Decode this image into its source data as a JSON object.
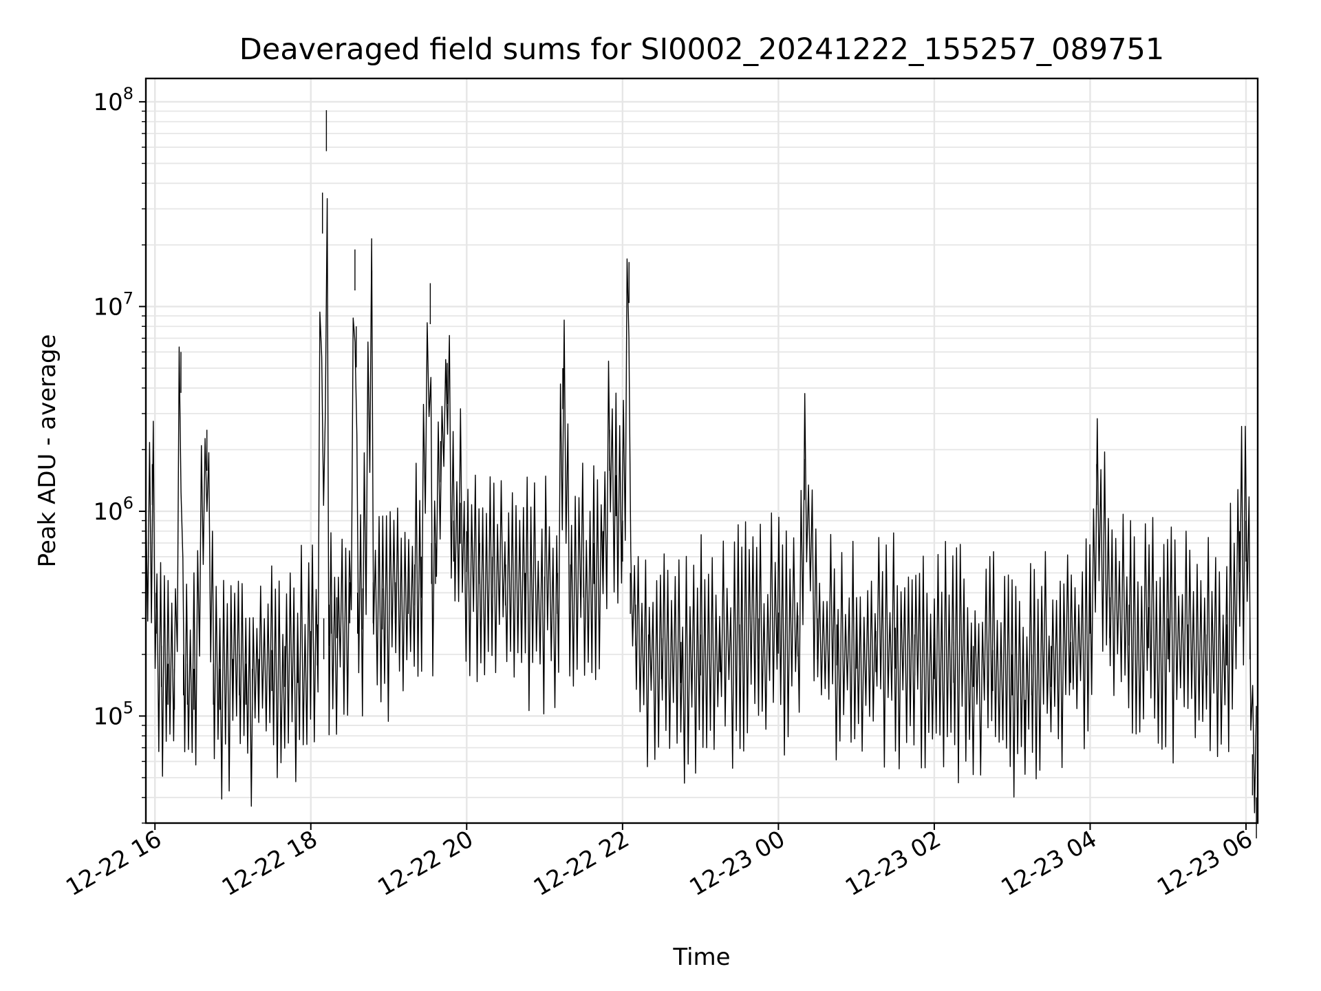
{
  "chart_data": {
    "type": "line",
    "title": "Deaveraged field sums for SI0002_20241222_155257_089751",
    "xlabel": "Time",
    "ylabel": "Peak ADU - average",
    "yscale": "log",
    "xlim": [
      "2024-12-22 15:53",
      "2024-12-23 06:09"
    ],
    "ylim": [
      30000,
      130000000
    ],
    "grid": true,
    "line_color": "#000000",
    "x_ticks": [
      {
        "label": "12-22 16",
        "value": "2024-12-22 16:00"
      },
      {
        "label": "12-22 18",
        "value": "2024-12-22 18:00"
      },
      {
        "label": "12-22 20",
        "value": "2024-12-22 20:00"
      },
      {
        "label": "12-22 22",
        "value": "2024-12-22 22:00"
      },
      {
        "label": "12-23 00",
        "value": "2024-12-23 00:00"
      },
      {
        "label": "12-23 02",
        "value": "2024-12-23 02:00"
      },
      {
        "label": "12-23 04",
        "value": "2024-12-23 04:00"
      },
      {
        "label": "12-23 06",
        "value": "2024-12-23 06:00"
      }
    ],
    "y_ticks": [
      {
        "base": "10",
        "exp": "5",
        "value": 100000
      },
      {
        "base": "10",
        "exp": "6",
        "value": 1000000
      },
      {
        "base": "10",
        "exp": "7",
        "value": 10000000
      },
      {
        "base": "10",
        "exp": "8",
        "value": 100000000
      }
    ],
    "series": [
      {
        "x": [
          "2024-12-22 15:53",
          "2024-12-22 15:58",
          "2024-12-22 16:01",
          "2024-12-22 16:05",
          "2024-12-22 16:10",
          "2024-12-22 16:15",
          "2024-12-22 16:20",
          "2024-12-22 16:22",
          "2024-12-22 16:25",
          "2024-12-22 16:30",
          "2024-12-22 16:40",
          "2024-12-22 16:45",
          "2024-12-22 16:50",
          "2024-12-22 17:00",
          "2024-12-22 17:05",
          "2024-12-22 17:10",
          "2024-12-22 17:15",
          "2024-12-22 17:20",
          "2024-12-22 17:30",
          "2024-12-22 17:40",
          "2024-12-22 17:50",
          "2024-12-22 18:00",
          "2024-12-22 18:05",
          "2024-12-22 18:09",
          "2024-12-22 18:10",
          "2024-12-22 18:12",
          "2024-12-22 18:14",
          "2024-12-22 18:16",
          "2024-12-22 18:20",
          "2024-12-22 18:30",
          "2024-12-22 18:34",
          "2024-12-22 18:35",
          "2024-12-22 18:36",
          "2024-12-22 18:40",
          "2024-12-22 18:47",
          "2024-12-22 18:48",
          "2024-12-22 18:55",
          "2024-12-22 19:05",
          "2024-12-22 19:15",
          "2024-12-22 19:20",
          "2024-12-22 19:25",
          "2024-12-22 19:32",
          "2024-12-22 19:33",
          "2024-12-22 19:36",
          "2024-12-22 19:40",
          "2024-12-22 19:45",
          "2024-12-22 19:50",
          "2024-12-22 19:55",
          "2024-12-22 20:00",
          "2024-12-22 20:10",
          "2024-12-22 20:20",
          "2024-12-22 20:30",
          "2024-12-22 20:45",
          "2024-12-22 21:00",
          "2024-12-22 21:10",
          "2024-12-22 21:14",
          "2024-12-22 21:20",
          "2024-12-22 21:30",
          "2024-12-22 21:38",
          "2024-12-22 21:45",
          "2024-12-22 21:50",
          "2024-12-22 21:55",
          "2024-12-22 22:00",
          "2024-12-22 22:05",
          "2024-12-22 22:06",
          "2024-12-22 22:10",
          "2024-12-22 22:20",
          "2024-12-22 22:30",
          "2024-12-22 22:45",
          "2024-12-22 23:00",
          "2024-12-22 23:15",
          "2024-12-22 23:30",
          "2024-12-22 23:45",
          "2024-12-23 00:00",
          "2024-12-23 00:15",
          "2024-12-23 00:20",
          "2024-12-23 00:30",
          "2024-12-23 00:45",
          "2024-12-23 01:00",
          "2024-12-23 01:15",
          "2024-12-23 01:30",
          "2024-12-23 01:45",
          "2024-12-23 02:00",
          "2024-12-23 02:15",
          "2024-12-23 02:30",
          "2024-12-23 02:45",
          "2024-12-23 03:00",
          "2024-12-23 03:10",
          "2024-12-23 03:15",
          "2024-12-23 03:30",
          "2024-12-23 03:45",
          "2024-12-23 04:00",
          "2024-12-23 04:05",
          "2024-12-23 04:15",
          "2024-12-23 04:30",
          "2024-12-23 04:45",
          "2024-12-23 05:00",
          "2024-12-23 05:15",
          "2024-12-23 05:30",
          "2024-12-23 05:45",
          "2024-12-23 05:55",
          "2024-12-23 06:00",
          "2024-12-23 06:03",
          "2024-12-23 06:05",
          "2024-12-23 06:08"
        ],
        "y": [
          500000,
          1700000,
          400000,
          220000,
          180000,
          170000,
          6000000,
          200000,
          180000,
          170000,
          2500000,
          180000,
          170000,
          190000,
          200000,
          180000,
          170000,
          190000,
          210000,
          220000,
          230000,
          260000,
          280000,
          36000000,
          300000,
          91000000,
          350000,
          400000,
          380000,
          450000,
          19000000,
          8000000,
          400000,
          420000,
          15000000,
          450000,
          420000,
          450000,
          500000,
          550000,
          600000,
          13000000,
          700000,
          700000,
          2200000,
          5300000,
          900000,
          1100000,
          800000,
          700000,
          600000,
          550000,
          500000,
          480000,
          500000,
          5000000,
          550000,
          600000,
          700000,
          800000,
          2500000,
          1500000,
          900000,
          16500000,
          500000,
          350000,
          250000,
          240000,
          230000,
          250000,
          260000,
          280000,
          300000,
          320000,
          310000,
          1800000,
          300000,
          280000,
          270000,
          260000,
          270000,
          250000,
          240000,
          230000,
          220000,
          210000,
          200000,
          120000,
          200000,
          220000,
          230000,
          400000,
          1700000,
          380000,
          350000,
          340000,
          300000,
          280000,
          250000,
          280000,
          800000,
          900000,
          300000,
          65000,
          40000
        ],
        "samples": 600
      }
    ]
  }
}
